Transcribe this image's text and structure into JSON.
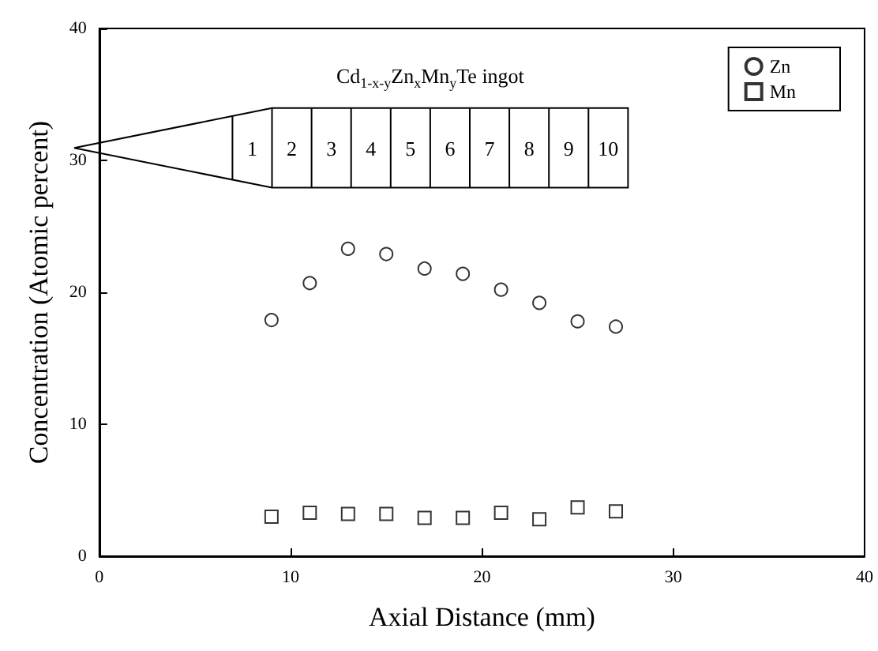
{
  "chart_data": {
    "type": "scatter",
    "xlabel": "Axial Distance (mm)",
    "ylabel": "Concentration (Atomic percent)",
    "x": [
      9,
      11,
      13,
      15,
      17,
      19,
      21,
      23,
      25,
      27
    ],
    "series": [
      {
        "name": "Zn",
        "color": "#000000",
        "marker": "circle",
        "values": [
          17.9,
          20.7,
          23.3,
          22.9,
          21.8,
          21.4,
          20.2,
          19.2,
          17.8,
          17.4
        ]
      },
      {
        "name": "Mn",
        "color": "#000000",
        "marker": "square",
        "values": [
          3.0,
          3.3,
          3.2,
          3.2,
          2.9,
          2.9,
          3.3,
          2.8,
          3.7,
          3.4
        ]
      }
    ],
    "xlim": [
      0,
      40
    ],
    "xticks": [
      0,
      10,
      20,
      30,
      40
    ],
    "ylim": [
      0,
      40
    ],
    "yticks": [
      0,
      10,
      20,
      30,
      40
    ],
    "grid": false,
    "legend": "top right",
    "annotations": [
      "Cd$_{1-x-y}$Zn$_{x}$Mn$_{y}$Te ingot",
      "1",
      "2",
      "3",
      "4",
      "5",
      "6",
      "7",
      "8",
      "9",
      "10"
    ]
  }
}
